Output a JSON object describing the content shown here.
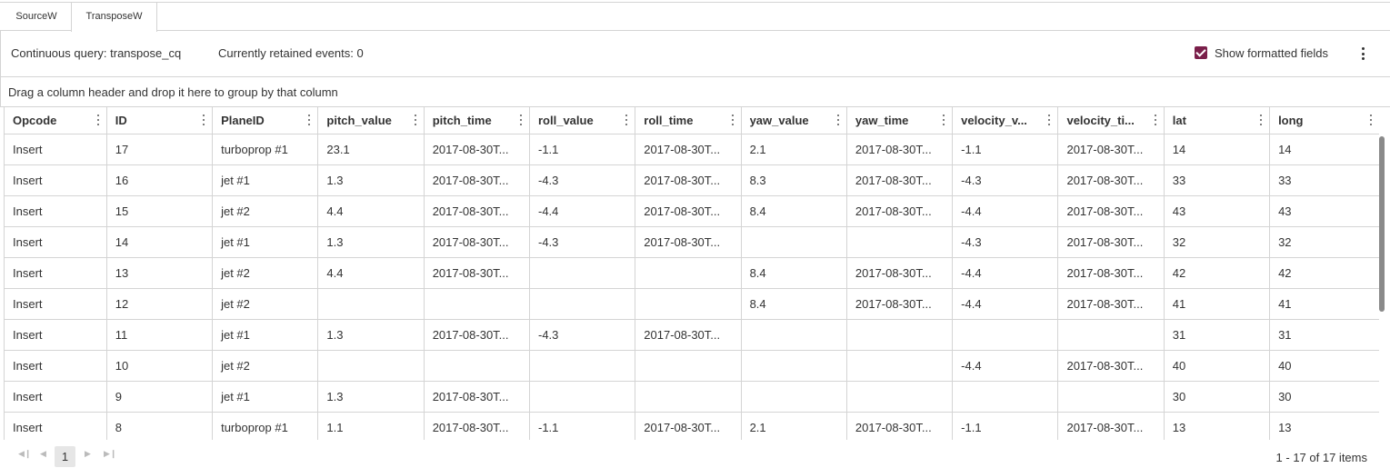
{
  "tabs": [
    {
      "label": "SourceW"
    },
    {
      "label": "TransposeW"
    }
  ],
  "info": {
    "query": "Continuous query: transpose_cq",
    "retained": "Currently retained events: 0",
    "show_formatted_label": "Show formatted fields",
    "show_formatted_checked": true
  },
  "group_hint": "Drag a column header and drop it here to group by that column",
  "columns": [
    "Opcode",
    "ID",
    "PlaneID",
    "pitch_value",
    "pitch_time",
    "roll_value",
    "roll_time",
    "yaw_value",
    "yaw_time",
    "velocity_v...",
    "velocity_ti...",
    "lat",
    "long"
  ],
  "rows": [
    [
      "Insert",
      "17",
      "turboprop #1",
      "23.1",
      "2017-08-30T...",
      "-1.1",
      "2017-08-30T...",
      "2.1",
      "2017-08-30T...",
      "-1.1",
      "2017-08-30T...",
      "14",
      "14"
    ],
    [
      "Insert",
      "16",
      "jet #1",
      "1.3",
      "2017-08-30T...",
      "-4.3",
      "2017-08-30T...",
      "8.3",
      "2017-08-30T...",
      "-4.3",
      "2017-08-30T...",
      "33",
      "33"
    ],
    [
      "Insert",
      "15",
      "jet #2",
      "4.4",
      "2017-08-30T...",
      "-4.4",
      "2017-08-30T...",
      "8.4",
      "2017-08-30T...",
      "-4.4",
      "2017-08-30T...",
      "43",
      "43"
    ],
    [
      "Insert",
      "14",
      "jet #1",
      "1.3",
      "2017-08-30T...",
      "-4.3",
      "2017-08-30T...",
      "",
      "",
      "-4.3",
      "2017-08-30T...",
      "32",
      "32"
    ],
    [
      "Insert",
      "13",
      "jet #2",
      "4.4",
      "2017-08-30T...",
      "",
      "",
      "8.4",
      "2017-08-30T...",
      "-4.4",
      "2017-08-30T...",
      "42",
      "42"
    ],
    [
      "Insert",
      "12",
      "jet #2",
      "",
      "",
      "",
      "",
      "8.4",
      "2017-08-30T...",
      "-4.4",
      "2017-08-30T...",
      "41",
      "41"
    ],
    [
      "Insert",
      "11",
      "jet #1",
      "1.3",
      "2017-08-30T...",
      "-4.3",
      "2017-08-30T...",
      "",
      "",
      "",
      "",
      "31",
      "31"
    ],
    [
      "Insert",
      "10",
      "jet #2",
      "",
      "",
      "",
      "",
      "",
      "",
      "-4.4",
      "2017-08-30T...",
      "40",
      "40"
    ],
    [
      "Insert",
      "9",
      "jet #1",
      "1.3",
      "2017-08-30T...",
      "",
      "",
      "",
      "",
      "",
      "",
      "30",
      "30"
    ],
    [
      "Insert",
      "8",
      "turboprop #1",
      "1.1",
      "2017-08-30T...",
      "-1.1",
      "2017-08-30T...",
      "2.1",
      "2017-08-30T...",
      "-1.1",
      "2017-08-30T...",
      "13",
      "13"
    ]
  ],
  "pager": {
    "first_icon": "first-page-icon",
    "prev_icon": "prev-page-icon",
    "current_page": "1",
    "next_icon": "next-page-icon",
    "last_icon": "last-page-icon",
    "items_text": "1 - 17 of 17 items"
  },
  "colors": {
    "accent": "#7a1f4a",
    "border": "#d4d4d4",
    "scrollbar": "#8a8a8a"
  }
}
